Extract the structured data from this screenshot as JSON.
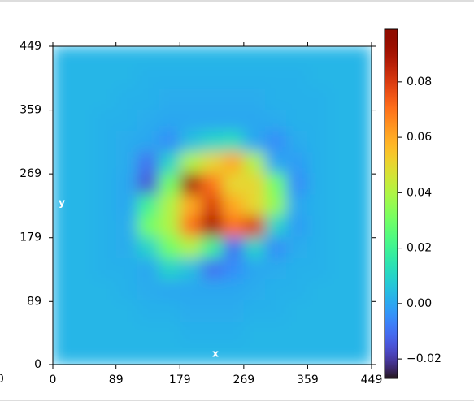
{
  "chart_data": {
    "type": "heatmap",
    "annotations": [
      "x",
      "y"
    ],
    "fragment_label": "0",
    "xlim": [
      0,
      449
    ],
    "ylim": [
      0,
      449
    ],
    "xticks": [
      0,
      89,
      179,
      269,
      359,
      449
    ],
    "yticks": [
      0,
      89,
      179,
      269,
      359,
      449
    ],
    "colormap": "turbo",
    "clim": [
      -0.027,
      0.099
    ],
    "cticks": [
      {
        "value": -0.02,
        "label": "−0.02"
      },
      {
        "value": 0,
        "label": "0.00"
      },
      0.02,
      0.04,
      0.06,
      0.08
    ],
    "values": [
      [
        0.003,
        0.003,
        0.003,
        0.003,
        0.003,
        0.003,
        0.003,
        0.003,
        0.003,
        0.003,
        0.003,
        0.003,
        0.003,
        0.003,
        0.003
      ],
      [
        0.003,
        0.003,
        0.003,
        0.003,
        0.002,
        0.002,
        0.002,
        0.002,
        0.002,
        0.002,
        0.002,
        0.002,
        0.003,
        0.003,
        0.003
      ],
      [
        0.003,
        0.003,
        0.003,
        0.002,
        0.002,
        0.001,
        0.001,
        0.001,
        0.001,
        0.001,
        0.002,
        0.002,
        0.002,
        0.003,
        0.003
      ],
      [
        0.003,
        0.003,
        0.002,
        0.002,
        0.001,
        0.0,
        0.0,
        0.0,
        0.0,
        0.0,
        0.001,
        0.002,
        0.002,
        0.003,
        0.003
      ],
      [
        0.003,
        0.003,
        0.002,
        0.001,
        0.0,
        -0.005,
        0.005,
        0.01,
        0.012,
        0.0,
        -0.005,
        0.001,
        0.002,
        0.003,
        0.003
      ],
      [
        0.003,
        0.003,
        0.002,
        0.001,
        -0.01,
        0.01,
        0.04,
        0.05,
        0.06,
        0.04,
        0.0,
        -0.002,
        0.002,
        0.003,
        0.003
      ],
      [
        0.003,
        0.003,
        0.002,
        0.0,
        -0.015,
        0.03,
        0.09,
        0.07,
        0.05,
        0.05,
        0.03,
        -0.005,
        0.002,
        0.003,
        0.003
      ],
      [
        0.003,
        0.003,
        0.002,
        0.0,
        0.02,
        0.04,
        0.06,
        0.08,
        0.06,
        0.05,
        0.035,
        0.0,
        0.002,
        0.003,
        0.003
      ],
      [
        0.003,
        0.003,
        0.002,
        0.001,
        0.03,
        0.04,
        0.07,
        0.09,
        0.07,
        0.08,
        0.01,
        -0.002,
        0.002,
        0.003,
        0.003
      ],
      [
        0.003,
        0.003,
        0.002,
        0.001,
        0.01,
        0.03,
        0.04,
        0.02,
        -0.01,
        0.01,
        -0.005,
        0.001,
        0.002,
        0.003,
        0.003
      ],
      [
        0.003,
        0.003,
        0.002,
        0.002,
        0.0,
        0.01,
        0.005,
        -0.01,
        -0.005,
        0.0,
        0.001,
        0.002,
        0.002,
        0.003,
        0.003
      ],
      [
        0.003,
        0.003,
        0.003,
        0.002,
        0.001,
        0.0,
        0.0,
        0.0,
        0.0,
        0.001,
        0.002,
        0.002,
        0.003,
        0.003,
        0.003
      ],
      [
        0.003,
        0.003,
        0.003,
        0.003,
        0.002,
        0.002,
        0.001,
        0.001,
        0.001,
        0.002,
        0.002,
        0.003,
        0.003,
        0.003,
        0.003
      ],
      [
        0.003,
        0.003,
        0.003,
        0.003,
        0.003,
        0.003,
        0.002,
        0.002,
        0.002,
        0.003,
        0.003,
        0.003,
        0.003,
        0.003,
        0.003
      ],
      [
        0.003,
        0.003,
        0.003,
        0.003,
        0.003,
        0.003,
        0.003,
        0.003,
        0.003,
        0.003,
        0.003,
        0.003,
        0.003,
        0.003,
        0.003
      ]
    ]
  }
}
